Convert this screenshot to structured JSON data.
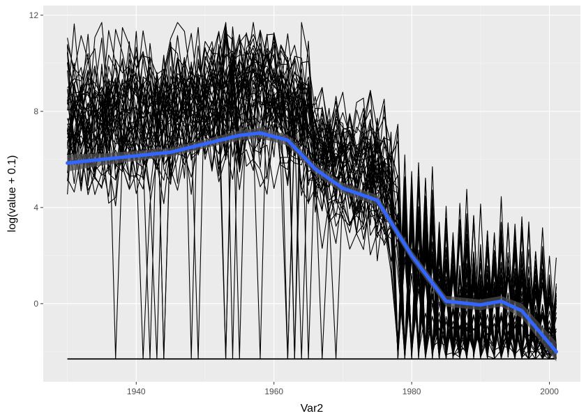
{
  "chart_data": {
    "type": "line",
    "title": "",
    "xlabel": "Var2",
    "ylabel": "log(value + 0.1)",
    "xlim": [
      1926.5,
      2004.5
    ],
    "ylim": [
      -3.25,
      12.4
    ],
    "x_ticks": [
      1940,
      1960,
      1980,
      2000
    ],
    "x_tick_labels": [
      "1940",
      "1960",
      "1980",
      "2000"
    ],
    "y_ticks": [
      0,
      4,
      8,
      12
    ],
    "y_tick_labels": [
      "0",
      "4",
      "8",
      "12"
    ],
    "grid": true,
    "x_range": [
      1930,
      2001
    ],
    "floor_value": -2.3,
    "series_count": 45,
    "series_note_generated": false,
    "smooth": {
      "name": "",
      "x": [
        1930,
        1935,
        1940,
        1945,
        1950,
        1955,
        1958,
        1962,
        1966,
        1970,
        1975,
        1980,
        1985,
        1990,
        1993,
        1996,
        2001
      ],
      "y": [
        5.85,
        6.0,
        6.15,
        6.3,
        6.65,
        7.0,
        7.1,
        6.8,
        5.6,
        4.8,
        4.3,
        2.0,
        0.1,
        -0.05,
        0.1,
        -0.3,
        -2.0
      ],
      "band_halfwidth": [
        0.35,
        0.25,
        0.2,
        0.18,
        0.18,
        0.2,
        0.22,
        0.22,
        0.22,
        0.22,
        0.22,
        0.22,
        0.22,
        0.22,
        0.22,
        0.3,
        0.4
      ]
    },
    "colors": {
      "panel": "#ebebeb",
      "grid_major": "#ffffff",
      "grid_minor": "#f5f5f5",
      "lines": "#000000",
      "smooth": "#3366ff",
      "band": "#4d4d4d"
    }
  }
}
